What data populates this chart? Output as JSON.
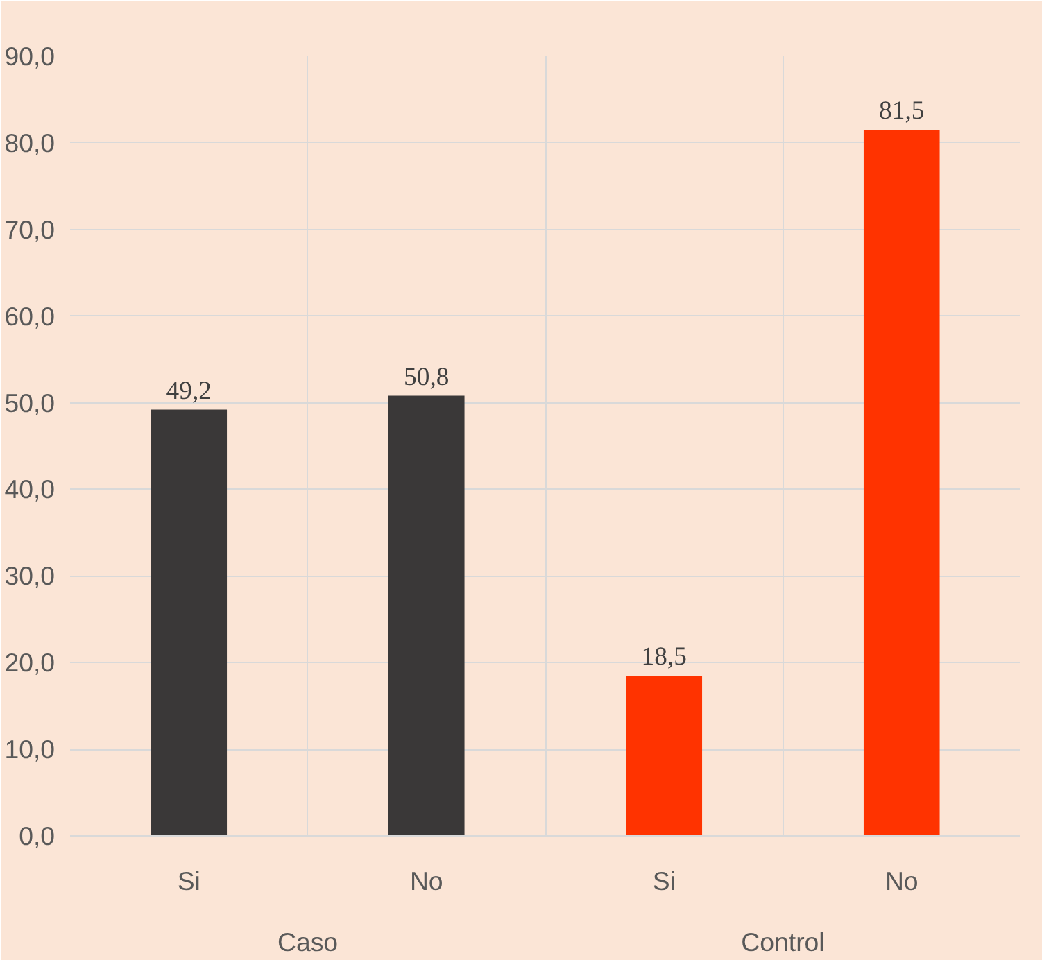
{
  "chart_data": {
    "type": "bar",
    "categories": [
      "Si",
      "No",
      "Si",
      "No"
    ],
    "values": [
      49.2,
      50.8,
      18.5,
      81.5
    ],
    "colors": [
      "#3a3838",
      "#3a3838",
      "#ff3300",
      "#ff3300"
    ],
    "value_labels": [
      "49,2",
      "50,8",
      "18,5",
      "81,5"
    ],
    "annotations": [
      "Caso",
      "Control"
    ],
    "ylim": [
      0,
      90
    ],
    "yticks": [
      {
        "value": 0,
        "label": "0,0"
      },
      {
        "value": 10,
        "label": "10,0"
      },
      {
        "value": 20,
        "label": "20,0"
      },
      {
        "value": 30,
        "label": "30,0"
      },
      {
        "value": 40,
        "label": "40,0"
      },
      {
        "value": 50,
        "label": "50,0"
      },
      {
        "value": 60,
        "label": "60,0"
      },
      {
        "value": 70,
        "label": "70,0"
      },
      {
        "value": 80,
        "label": "80,0"
      },
      {
        "value": 90,
        "label": "90,0"
      }
    ],
    "grid": true
  }
}
